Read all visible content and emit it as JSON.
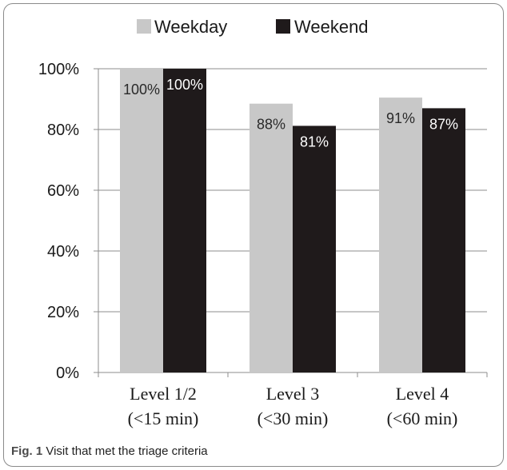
{
  "chart_data": {
    "type": "bar",
    "categories": [
      "Level 1/2",
      "Level 3",
      "Level 4"
    ],
    "category_sublabels": [
      "(<15 min)",
      "(<30 min)",
      "(<60 min)"
    ],
    "series": [
      {
        "name": "Weekday",
        "values": [
          100,
          88,
          91
        ],
        "labels": [
          "100%",
          "88%",
          "91%"
        ],
        "color": "#c8c8c8"
      },
      {
        "name": "Weekend",
        "values": [
          100,
          81,
          87
        ],
        "labels": [
          "100%",
          "81%",
          "87%"
        ],
        "color": "#1f1a1b"
      }
    ],
    "plotted_values": [
      [
        100,
        88.5,
        90.5
      ],
      [
        100,
        81.2,
        87.0
      ]
    ],
    "ylim": [
      0,
      100
    ],
    "yticks": [
      0,
      20,
      40,
      60,
      80,
      100
    ],
    "ytick_labels": [
      "0%",
      "20%",
      "40%",
      "60%",
      "80%",
      "100%"
    ],
    "grid": true,
    "legend": "top-center"
  },
  "caption": {
    "label": "Fig. 1",
    "text": "Visit that met the triage criteria"
  }
}
